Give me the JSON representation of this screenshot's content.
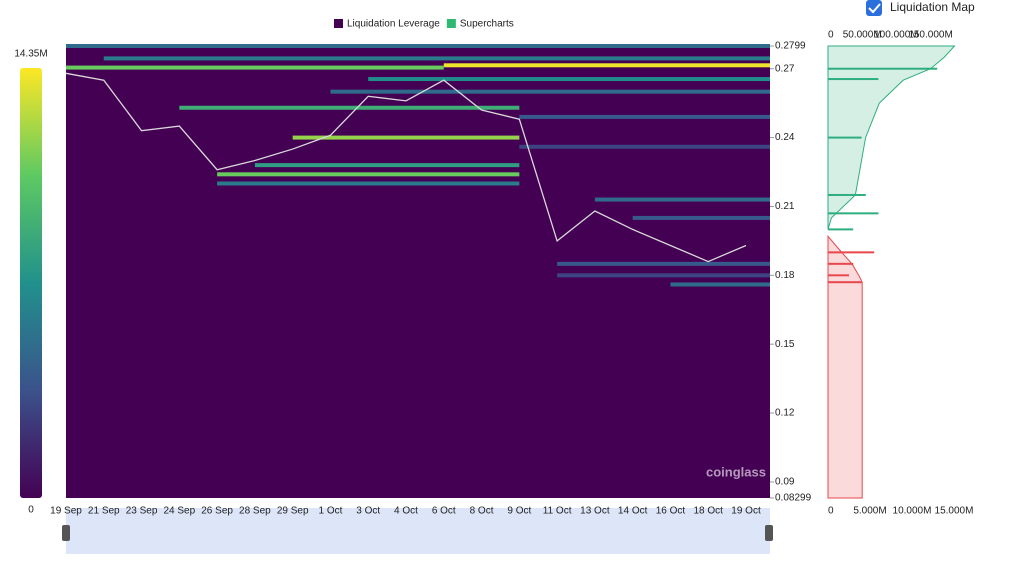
{
  "legend": [
    {
      "name": "Liquidation Leverage",
      "color": "#440154"
    },
    {
      "name": "Supercharts",
      "color": "#2eb872"
    }
  ],
  "checkbox_label": "Liquidation Map",
  "watermark": "coinglass",
  "chart_data": {
    "type": "heatmap",
    "background": "#440154",
    "colorscale": [
      "#440154",
      "#3b528b",
      "#21918c",
      "#5ec962",
      "#fde725"
    ],
    "colorbar": {
      "ticks": [
        0,
        {
          "value": 14350000,
          "label": "14.35M"
        }
      ]
    },
    "categories": [
      "19 Sep",
      "21 Sep",
      "23 Sep",
      "24 Sep",
      "26 Sep",
      "28 Sep",
      "29 Sep",
      "1 Oct",
      "3 Oct",
      "4 Oct",
      "6 Oct",
      "8 Oct",
      "9 Oct",
      "11 Oct",
      "13 Oct",
      "14 Oct",
      "16 Oct",
      "18 Oct",
      "19 Oct"
    ],
    "ylim": [
      0.08299,
      0.2799
    ],
    "yticks": [
      0.08299,
      0.09,
      0.12,
      0.15,
      0.18,
      0.21,
      0.24,
      0.27,
      0.2799
    ],
    "price": {
      "color": "#d9d9d9",
      "values": [
        0.268,
        0.265,
        0.243,
        0.245,
        0.226,
        0.23,
        0.235,
        0.241,
        0.258,
        0.256,
        0.265,
        0.252,
        0.248,
        0.195,
        0.208,
        0.2,
        0.193,
        0.186,
        0.193
      ]
    },
    "levels": [
      {
        "price": 0.2799,
        "from": "19 Sep",
        "to": "19 Oct",
        "value": 5000000
      },
      {
        "price": 0.2745,
        "from": "21 Sep",
        "to": "19 Oct",
        "value": 6000000
      },
      {
        "price": 0.2715,
        "from": "6 Oct",
        "to": "19 Oct",
        "value": 14000000
      },
      {
        "price": 0.2705,
        "from": "19 Sep",
        "to": "6 Oct",
        "value": 11000000
      },
      {
        "price": 0.2655,
        "from": "3 Oct",
        "to": "19 Oct",
        "value": 7000000
      },
      {
        "price": 0.26,
        "from": "1 Oct",
        "to": "19 Oct",
        "value": 5000000
      },
      {
        "price": 0.253,
        "from": "24 Sep",
        "to": "9 Oct",
        "value": 9000000
      },
      {
        "price": 0.249,
        "from": "9 Oct",
        "to": "19 Oct",
        "value": 4000000
      },
      {
        "price": 0.24,
        "from": "29 Sep",
        "to": "9 Oct",
        "value": 12000000
      },
      {
        "price": 0.236,
        "from": "9 Oct",
        "to": "19 Oct",
        "value": 3000000
      },
      {
        "price": 0.228,
        "from": "28 Sep",
        "to": "9 Oct",
        "value": 8000000
      },
      {
        "price": 0.224,
        "from": "26 Sep",
        "to": "9 Oct",
        "value": 11000000
      },
      {
        "price": 0.22,
        "from": "26 Sep",
        "to": "9 Oct",
        "value": 6000000
      },
      {
        "price": 0.213,
        "from": "13 Oct",
        "to": "19 Oct",
        "value": 5000000
      },
      {
        "price": 0.205,
        "from": "14 Oct",
        "to": "19 Oct",
        "value": 4000000
      },
      {
        "price": 0.185,
        "from": "11 Oct",
        "to": "19 Oct",
        "value": 4000000
      },
      {
        "price": 0.18,
        "from": "11 Oct",
        "to": "19 Oct",
        "value": 3000000
      },
      {
        "price": 0.176,
        "from": "16 Oct",
        "to": "19 Oct",
        "value": 5000000
      }
    ],
    "side": {
      "xlim": [
        0,
        17500000
      ],
      "xticks": [
        0,
        {
          "value": 5000000,
          "label": "5.000M"
        },
        {
          "value": 10000000,
          "label": "10.000M"
        },
        {
          "value": 15000000,
          "label": "15.000M"
        }
      ],
      "x2lim": [
        0,
        215000000
      ],
      "x2ticks": [
        0,
        {
          "value": 50000000,
          "label": "50.000M"
        },
        {
          "value": 100000000,
          "label": "100.000M"
        },
        {
          "value": 150000000,
          "label": "150.000M"
        }
      ],
      "series": [
        {
          "kind": "short",
          "color": "#2eae7e",
          "prices": [
            0.27,
            0.2655,
            0.24,
            0.215,
            0.207,
            0.2
          ],
          "values": [
            13000000,
            6000000,
            4000000,
            4500000,
            6000000,
            3000000
          ]
        },
        {
          "kind": "long",
          "color": "#e8474c",
          "prices": [
            0.19,
            0.185,
            0.18,
            0.177
          ],
          "values": [
            5500000,
            3000000,
            2500000,
            4000000
          ]
        }
      ],
      "cumulative": [
        {
          "kind": "short",
          "color": "#2eae7e",
          "prices": [
            0.2,
            0.205,
            0.215,
            0.24,
            0.255,
            0.265,
            0.27,
            0.275,
            0.2799
          ],
          "values": [
            0,
            5000000,
            40000000,
            55000000,
            75000000,
            110000000,
            150000000,
            170000000,
            185000000
          ]
        },
        {
          "kind": "long",
          "color": "#e8474c",
          "prices": [
            0.197,
            0.19,
            0.185,
            0.18,
            0.177,
            0.08299
          ],
          "values": [
            0,
            20000000,
            35000000,
            45000000,
            50000000,
            50000000
          ]
        }
      ]
    }
  }
}
